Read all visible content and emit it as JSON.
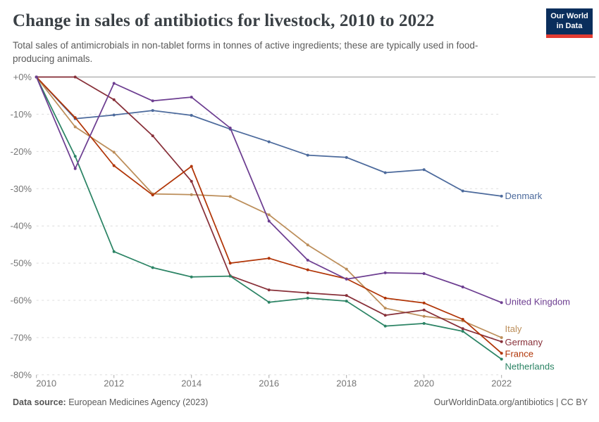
{
  "header": {
    "title": "Change in sales of antibiotics for livestock, 2010 to 2022",
    "subtitle": "Total sales of antimicrobials in non-tablet forms in tonnes of active ingredients; these are typically used in food-producing animals."
  },
  "logo": {
    "line1": "Our World",
    "line2": "in Data",
    "bg": "#0a2e5c",
    "stripe": "#e23b31"
  },
  "chart_data": {
    "type": "line",
    "title": "Change in sales of antibiotics for livestock, 2010 to 2022",
    "subtitle": "Total sales of antimicrobials in non-tablet forms in tonnes of active ingredients; these are typically used in food-producing animals.",
    "unit": "%",
    "x": [
      2010,
      2011,
      2012,
      2013,
      2014,
      2015,
      2016,
      2017,
      2018,
      2019,
      2020,
      2021,
      2022
    ],
    "series": [
      {
        "name": "Denmark",
        "color": "#4C6A9C",
        "values": [
          0,
          -11.2,
          -10.2,
          -9.0,
          -10.3,
          -14.0,
          -17.4,
          -21.0,
          -21.6,
          -25.7,
          -24.9,
          -30.6,
          -32.0
        ]
      },
      {
        "name": "United Kingdom",
        "color": "#6D3E91",
        "values": [
          0,
          -24.6,
          -1.7,
          -6.4,
          -5.4,
          -13.7,
          -38.7,
          -49.2,
          -54.3,
          -52.6,
          -52.8,
          -56.4,
          -60.6
        ]
      },
      {
        "name": "Italy",
        "color": "#BC8E5A",
        "values": [
          0,
          -13.4,
          -20.2,
          -31.4,
          -31.6,
          -32.1,
          -37.0,
          -45.1,
          -51.6,
          -62.1,
          -64.3,
          -65.5,
          -70.0
        ]
      },
      {
        "name": "Germany",
        "color": "#883039",
        "values": [
          0,
          0.0,
          -6.1,
          -15.8,
          -28.0,
          -53.4,
          -57.2,
          -58.0,
          -58.7,
          -64.0,
          -62.6,
          -67.6,
          -71.1
        ]
      },
      {
        "name": "France",
        "color": "#B13507",
        "values": [
          0,
          -10.9,
          -23.8,
          -31.7,
          -24.0,
          -50.0,
          -48.7,
          -51.8,
          -54.2,
          -59.4,
          -60.7,
          -65.1,
          -74.2
        ]
      },
      {
        "name": "Netherlands",
        "color": "#2C8465",
        "values": [
          0,
          -21.3,
          -46.9,
          -51.2,
          -53.7,
          -53.5,
          -60.5,
          -59.4,
          -60.2,
          -66.9,
          -66.2,
          -68.3,
          -75.8
        ]
      }
    ],
    "yticks": {
      "labels": [
        "+0%",
        "-10%",
        "-20%",
        "-30%",
        "-40%",
        "-50%",
        "-60%",
        "-70%",
        "-80%"
      ],
      "values": [
        0,
        -10,
        -20,
        -30,
        -40,
        -50,
        -60,
        -70,
        -80
      ]
    },
    "xticks": [
      2010,
      2012,
      2014,
      2016,
      2018,
      2020,
      2022
    ],
    "ylim": [
      -80,
      0
    ],
    "xlim": [
      2010,
      2022
    ],
    "grid": "horizontal-dashed",
    "legend_position": "end-of-line-labels"
  },
  "footer": {
    "source_label": "Data source:",
    "source": " European Medicines Agency (2023)",
    "right": "OurWorldinData.org/antibiotics | CC BY"
  }
}
